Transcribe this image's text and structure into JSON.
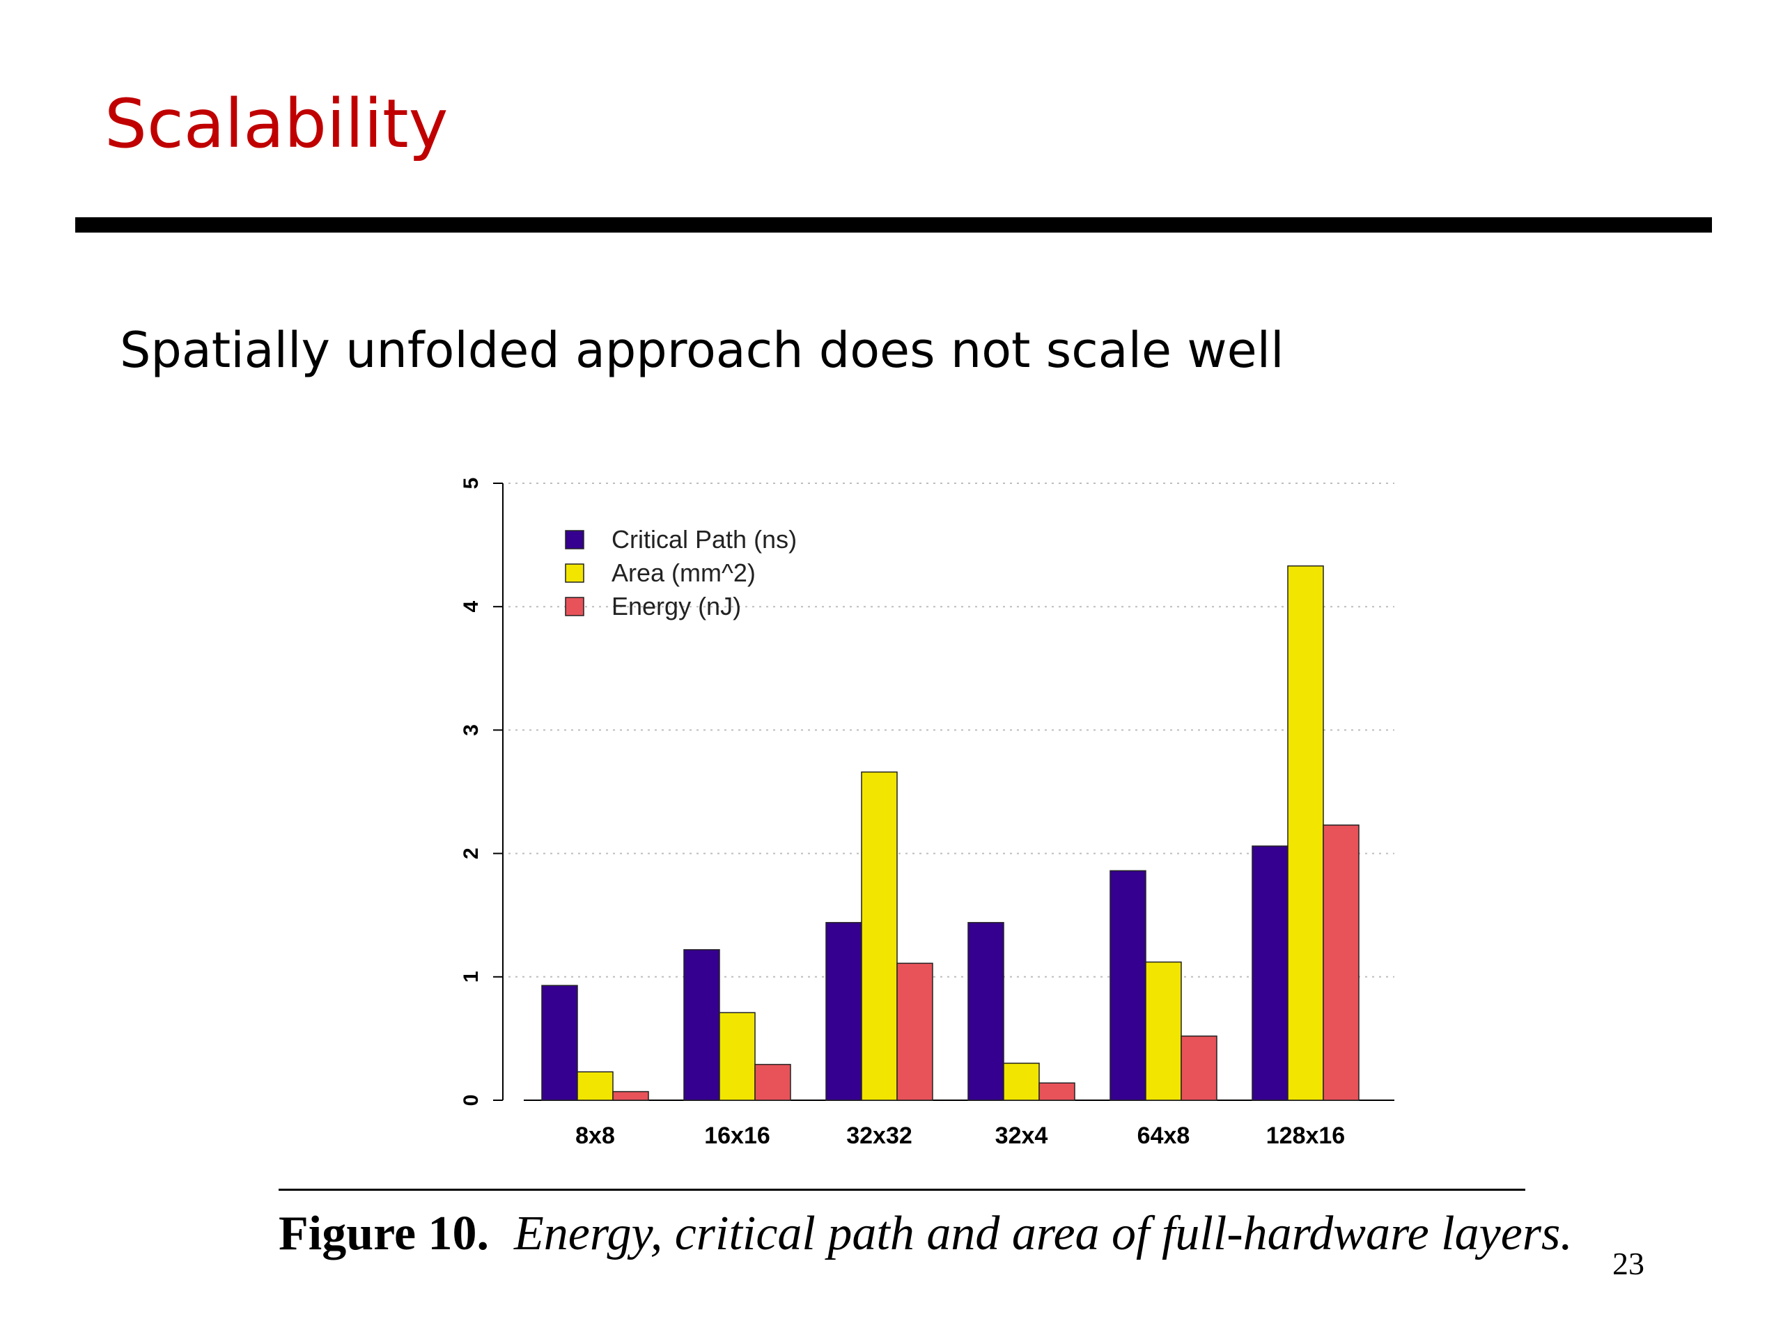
{
  "slide": {
    "title": "Scalability",
    "subtitle": "Spatially unfolded approach does not scale well",
    "figure_label": "Figure 10.",
    "figure_caption": "Energy, critical path and area of full-hardware layers.",
    "page_number": "23",
    "title_color": "#c00000"
  },
  "chart_data": {
    "type": "bar",
    "title": "",
    "xlabel": "",
    "ylabel": "",
    "categories": [
      "8x8",
      "16x16",
      "32x32",
      "32x4",
      "64x8",
      "128x16"
    ],
    "series": [
      {
        "name": "Critical Path (ns)",
        "color": "#35008f",
        "values": [
          0.93,
          1.22,
          1.44,
          1.44,
          1.86,
          2.06
        ]
      },
      {
        "name": "Area (mm^2)",
        "color": "#f2e600",
        "values": [
          0.23,
          0.71,
          2.66,
          0.3,
          1.12,
          4.33
        ]
      },
      {
        "name": "Energy (nJ)",
        "color": "#e8535a",
        "values": [
          0.07,
          0.29,
          1.11,
          0.14,
          0.52,
          2.23
        ]
      }
    ],
    "ylim": [
      0,
      5
    ],
    "yticks": [
      "0",
      "1",
      "2",
      "3",
      "4",
      "5"
    ],
    "grid": true,
    "legend_position": "top-left"
  }
}
